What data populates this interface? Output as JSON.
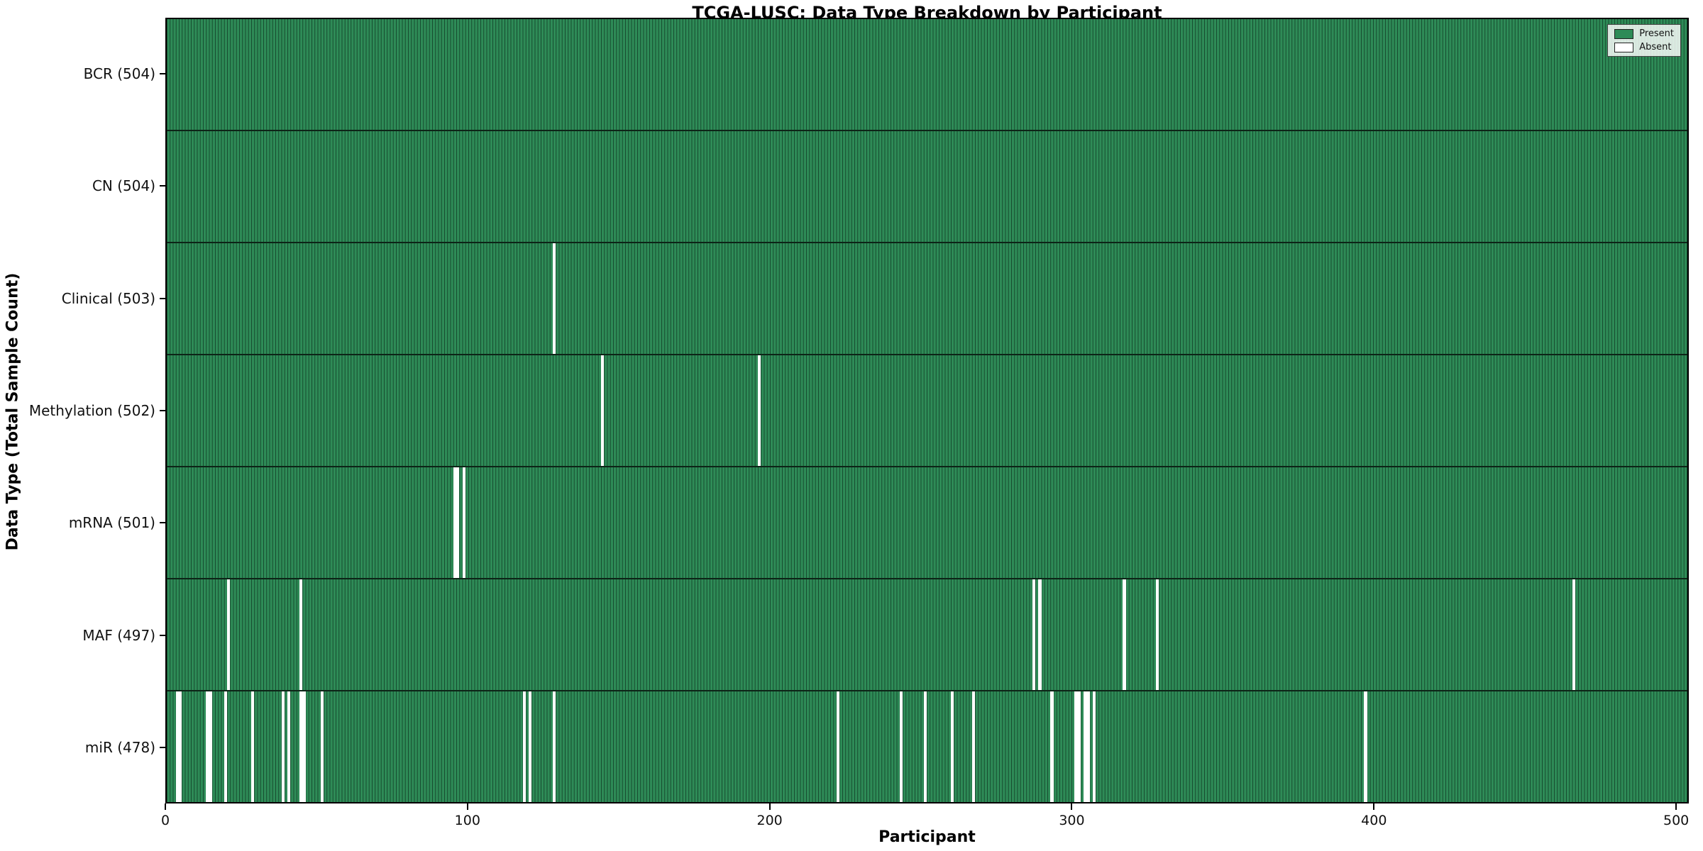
{
  "chart_data": {
    "type": "heatmap",
    "title": "TCGA-LUSC: Data Type Breakdown by Participant",
    "xlabel": "Participant",
    "ylabel": "Data Type (Total Sample Count)",
    "x_ticks": [
      0,
      100,
      200,
      300,
      400,
      500
    ],
    "x_max": 504.2,
    "n_participants": 504,
    "grid": false,
    "legend_position": "upper right",
    "legend": [
      {
        "label": "Present",
        "color": "#2e8b57"
      },
      {
        "label": "Absent",
        "color": "#ffffff"
      }
    ],
    "colors": {
      "present": "#2e8b57",
      "bar_edge": "#16492e",
      "absent": "#ffffff"
    },
    "rows": [
      {
        "label": "BCR (504)",
        "name": "BCR",
        "count": 504,
        "absent": []
      },
      {
        "label": "CN (504)",
        "name": "CN",
        "count": 504,
        "absent": []
      },
      {
        "label": "Clinical (503)",
        "name": "Clinical",
        "count": 503,
        "absent": [
          128
        ]
      },
      {
        "label": "Methylation (502)",
        "name": "Methylation",
        "count": 502,
        "absent": [
          144,
          196
        ]
      },
      {
        "label": "mRNA (501)",
        "name": "mRNA",
        "count": 501,
        "absent": [
          95,
          96,
          98
        ]
      },
      {
        "label": "MAF (497)",
        "name": "MAF",
        "count": 497,
        "absent": [
          20,
          44,
          287,
          289,
          317,
          328,
          466
        ]
      },
      {
        "label": "miR (478)",
        "name": "miR",
        "count": 478,
        "absent": [
          3,
          4,
          13,
          14,
          19,
          28,
          38,
          40,
          44,
          45,
          51,
          118,
          120,
          128,
          222,
          243,
          251,
          260,
          267,
          293,
          301,
          302,
          304,
          305,
          307,
          397
        ]
      }
    ]
  }
}
